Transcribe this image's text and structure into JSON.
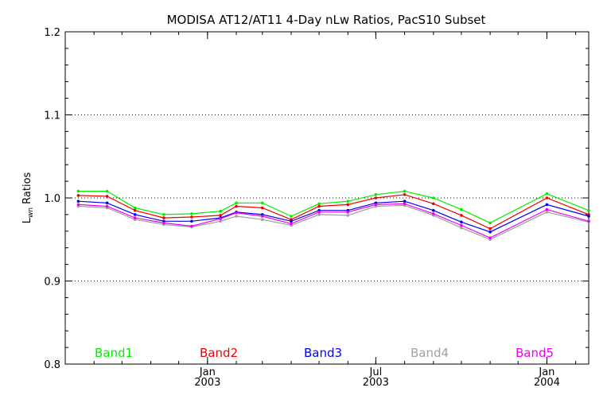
{
  "chart_data": {
    "type": "line",
    "title": "MODISA AT12/AT11 4-Day nLw Ratios, PacS10 Subset",
    "ylabel_main": "L",
    "ylabel_sub": "wn",
    "ylabel_rest": " Ratios",
    "ylim": [
      0.8,
      1.2
    ],
    "yticks": [
      "0.8",
      "0.9",
      "1.0",
      "1.1",
      "1.2"
    ],
    "y_gridlines": [
      0.9,
      1.0,
      1.1
    ],
    "grid": "dotted horizontal",
    "legend_placement": "bottom, inside plot",
    "x_range": [
      "2002-08-01",
      "2004-02-15"
    ],
    "xticks": [
      {
        "date": "2003-01-01",
        "month": "Jan",
        "year": "2003"
      },
      {
        "date": "2003-07-01",
        "month": "Jul",
        "year": "2003"
      },
      {
        "date": "2004-01-01",
        "month": "Jan",
        "year": "2004"
      }
    ],
    "x": [
      "2002-08-15",
      "2002-09-15",
      "2002-10-15",
      "2002-11-15",
      "2002-12-15",
      "2003-01-15",
      "2003-02-01",
      "2003-03-01",
      "2003-04-01",
      "2003-05-01",
      "2003-06-01",
      "2003-07-01",
      "2003-08-01",
      "2003-09-01",
      "2003-10-01",
      "2003-11-01",
      "2004-01-01",
      "2004-02-15"
    ],
    "series": [
      {
        "name": "Band1",
        "color": "#00ee00",
        "values": [
          1.008,
          1.008,
          0.988,
          0.98,
          0.981,
          0.984,
          0.994,
          0.994,
          0.978,
          0.993,
          0.996,
          1.004,
          1.008,
          1.0,
          0.986,
          0.97,
          1.005,
          0.985
        ]
      },
      {
        "name": "Band2",
        "color": "#ee0000",
        "values": [
          1.003,
          1.002,
          0.985,
          0.976,
          0.977,
          0.979,
          0.99,
          0.988,
          0.974,
          0.99,
          0.992,
          1.0,
          1.004,
          0.993,
          0.979,
          0.963,
          1.0,
          0.98
        ]
      },
      {
        "name": "Band3",
        "color": "#0000ee",
        "values": [
          0.996,
          0.994,
          0.98,
          0.972,
          0.972,
          0.976,
          0.983,
          0.98,
          0.972,
          0.985,
          0.985,
          0.994,
          0.996,
          0.985,
          0.971,
          0.959,
          0.992,
          0.978
        ]
      },
      {
        "name": "Band4",
        "color": "#a0a0a0",
        "values": [
          0.99,
          0.988,
          0.974,
          0.968,
          0.965,
          0.972,
          0.978,
          0.974,
          0.967,
          0.98,
          0.979,
          0.99,
          0.991,
          0.979,
          0.964,
          0.95,
          0.983,
          0.971
        ]
      },
      {
        "name": "Band5",
        "color": "#ee00ee",
        "values": [
          0.992,
          0.99,
          0.976,
          0.97,
          0.966,
          0.975,
          0.982,
          0.978,
          0.969,
          0.983,
          0.983,
          0.992,
          0.993,
          0.981,
          0.967,
          0.952,
          0.986,
          0.972
        ]
      }
    ]
  }
}
